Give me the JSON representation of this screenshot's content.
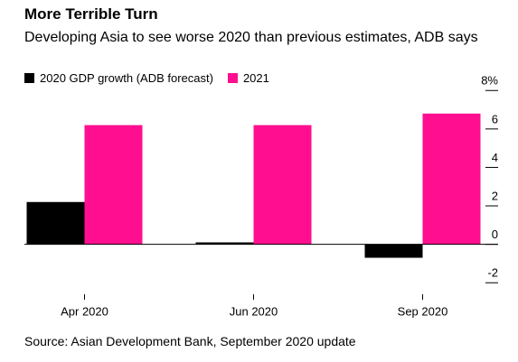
{
  "chart_data": {
    "type": "bar",
    "title": "More Terrible Turn",
    "subtitle": "Developing Asia to see worse 2020 than previous estimates, ADB says",
    "source": "Source: Asian Development Bank, September 2020 update",
    "categories": [
      "Apr 2020",
      "Jun 2020",
      "Sep 2020"
    ],
    "series": [
      {
        "name": "2020 GDP growth (ADB forecast)",
        "color": "#000000",
        "values": [
          2.2,
          0.1,
          -0.7
        ]
      },
      {
        "name": "2021",
        "color": "#ff0f8f",
        "values": [
          6.2,
          6.2,
          6.8
        ]
      }
    ],
    "ylim": [
      -2.6,
      8.2
    ],
    "yticks": [
      {
        "value": 8,
        "label": "8%"
      },
      6,
      4,
      2,
      0,
      -2
    ]
  }
}
